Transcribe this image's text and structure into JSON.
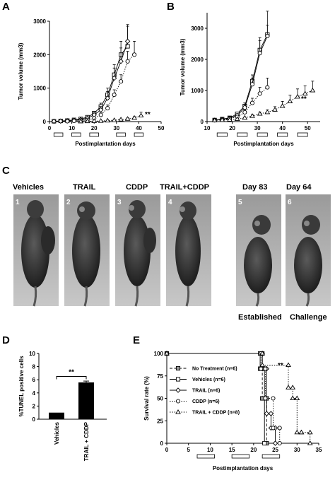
{
  "panel_letters": {
    "a": "A",
    "b": "B",
    "c": "C",
    "d": "D",
    "e": "E"
  },
  "chart_data": [
    {
      "id": "A",
      "type": "line",
      "xlabel": "Postimplantation days",
      "ylabel": "Tumor volume (mm3)",
      "xlim": [
        0,
        50
      ],
      "ylim": [
        0,
        3000
      ],
      "xticks": [
        0,
        10,
        20,
        30,
        40,
        50
      ],
      "yticks": [
        0,
        1000,
        2000,
        3000
      ],
      "annotation": "**",
      "treatment_bars": [
        [
          2,
          6
        ],
        [
          10,
          14
        ],
        [
          18,
          22
        ],
        [
          30,
          34
        ],
        [
          38,
          42
        ]
      ],
      "series": [
        {
          "marker": "square",
          "dash": "solid",
          "x": [
            2,
            5,
            8,
            11,
            14,
            17,
            20,
            23,
            26,
            29,
            32,
            35
          ],
          "y": [
            10,
            20,
            30,
            50,
            80,
            130,
            250,
            450,
            800,
            1400,
            2000,
            2250
          ],
          "err": [
            5,
            10,
            15,
            20,
            25,
            40,
            60,
            100,
            200,
            300,
            400,
            600
          ]
        },
        {
          "marker": "diamond",
          "dash": "solid",
          "x": [
            2,
            5,
            8,
            11,
            14,
            17,
            20,
            23,
            26,
            29,
            32,
            35
          ],
          "y": [
            10,
            15,
            25,
            40,
            60,
            100,
            200,
            350,
            700,
            1300,
            1800,
            2400
          ],
          "err": [
            5,
            10,
            15,
            20,
            25,
            40,
            60,
            100,
            200,
            300,
            400,
            500
          ]
        },
        {
          "marker": "circle",
          "dash": "dotted",
          "x": [
            8,
            11,
            14,
            17,
            20,
            23,
            26,
            29,
            32,
            35,
            38
          ],
          "y": [
            10,
            20,
            30,
            50,
            100,
            200,
            400,
            800,
            1200,
            1800,
            2000
          ],
          "err": [
            5,
            10,
            10,
            20,
            40,
            60,
            100,
            150,
            200,
            300,
            400
          ]
        },
        {
          "marker": "triangle",
          "dash": "dotted",
          "x": [
            14,
            17,
            20,
            23,
            26,
            29,
            32,
            35,
            38,
            41
          ],
          "y": [
            5,
            10,
            15,
            20,
            30,
            40,
            60,
            80,
            110,
            180
          ],
          "err": [
            2,
            5,
            5,
            8,
            10,
            15,
            20,
            30,
            40,
            100
          ]
        }
      ]
    },
    {
      "id": "B",
      "type": "line",
      "xlabel": "Postimplantation days",
      "ylabel": "Tumor volume (mm3)",
      "xlim": [
        10,
        55
      ],
      "ylim": [
        0,
        3500
      ],
      "xticks": [
        10,
        20,
        30,
        40,
        50
      ],
      "yticks": [
        0,
        1000,
        2000,
        3000
      ],
      "annotation": "**",
      "treatment_bars": [
        [
          14,
          18
        ],
        [
          22,
          26
        ],
        [
          30,
          34
        ],
        [
          38,
          42
        ],
        [
          46,
          50
        ]
      ],
      "series": [
        {
          "marker": "square",
          "dash": "solid",
          "x": [
            13,
            16,
            19,
            22,
            25,
            28,
            31,
            34
          ],
          "y": [
            50,
            80,
            120,
            250,
            500,
            1300,
            2300,
            2800
          ],
          "err": [
            20,
            20,
            40,
            50,
            100,
            200,
            400,
            300
          ]
        },
        {
          "marker": "circle",
          "dash": "solid",
          "x": [
            13,
            16,
            19,
            22,
            25,
            28,
            31,
            34
          ],
          "y": [
            50,
            70,
            110,
            200,
            450,
            1200,
            2200,
            2750
          ],
          "err": [
            20,
            20,
            40,
            50,
            100,
            200,
            400,
            800
          ]
        },
        {
          "marker": "circle",
          "dash": "dotted",
          "x": [
            13,
            16,
            19,
            22,
            25,
            28,
            31,
            34
          ],
          "y": [
            40,
            60,
            90,
            150,
            300,
            600,
            900,
            1100
          ],
          "err": [
            20,
            20,
            30,
            40,
            80,
            150,
            200,
            300
          ]
        },
        {
          "marker": "triangle",
          "dash": "dotted",
          "x": [
            13,
            16,
            19,
            22,
            25,
            28,
            31,
            34,
            37,
            40,
            43,
            46,
            49,
            52
          ],
          "y": [
            40,
            50,
            60,
            80,
            120,
            180,
            250,
            300,
            380,
            500,
            650,
            800,
            900,
            1000
          ],
          "err": [
            10,
            15,
            20,
            20,
            30,
            40,
            60,
            80,
            100,
            150,
            200,
            250,
            250,
            300
          ]
        }
      ]
    },
    {
      "id": "D",
      "type": "bar",
      "categories": [
        "Vehicles",
        "TRAIL + CDDP"
      ],
      "values": [
        1.0,
        5.6
      ],
      "err": [
        0,
        0.2
      ],
      "ylabel": "%TUNEL positive cells",
      "ylim": [
        0,
        10
      ],
      "yticks": [
        0,
        2,
        4,
        6,
        8,
        10
      ],
      "annotation": "**"
    },
    {
      "id": "E",
      "type": "line",
      "step": true,
      "xlabel": "Postimplantation days",
      "ylabel": "Survival rate (%)",
      "xlim": [
        0,
        35
      ],
      "ylim": [
        0,
        100
      ],
      "xticks": [
        0,
        5,
        10,
        15,
        20,
        25,
        30,
        35
      ],
      "yticks": [
        0,
        25,
        50,
        75,
        100
      ],
      "annotation": "**",
      "treatment_bars": [
        [
          7,
          11
        ],
        [
          15,
          19
        ],
        [
          22,
          26
        ]
      ],
      "series": [
        {
          "name": "No Treatment  (n=6)",
          "marker": "filled-square",
          "dash": "dashed",
          "x": [
            0,
            22,
            22,
            23,
            23
          ],
          "y": [
            100,
            100,
            50,
            50,
            0
          ]
        },
        {
          "name": "Vehicles  (n=6)",
          "marker": "square",
          "dash": "solid",
          "x": [
            0,
            21.5,
            21.5,
            22.5,
            22.5
          ],
          "y": [
            100,
            100,
            83,
            83,
            0
          ]
        },
        {
          "name": "TRAIL  (n=6)",
          "marker": "diamond",
          "dash": "solid",
          "x": [
            0,
            22,
            22,
            23,
            23,
            24,
            24,
            25,
            25
          ],
          "y": [
            100,
            100,
            83,
            83,
            33,
            33,
            17,
            17,
            0
          ]
        },
        {
          "name": "CDDP  (n=6)",
          "marker": "circle",
          "dash": "dotted",
          "x": [
            0,
            21.7,
            21.7,
            22.7,
            22.7,
            24.5,
            24.5,
            26,
            26
          ],
          "y": [
            100,
            100,
            83,
            83,
            50,
            50,
            17,
            17,
            0
          ]
        },
        {
          "name": "TRAIL + CDDP  (n=8)",
          "marker": "triangle",
          "dash": "dotted",
          "x": [
            0,
            22,
            22,
            28,
            28,
            29,
            29,
            30,
            30,
            31,
            31,
            33,
            33
          ],
          "y": [
            100,
            100,
            87,
            87,
            62,
            62,
            50,
            50,
            12,
            12,
            12,
            12,
            0
          ]
        }
      ]
    }
  ],
  "photos": {
    "titles": [
      "Vehicles",
      "TRAIL",
      "CDDP",
      "TRAIL+CDDP",
      "Day 83",
      "Day 64"
    ],
    "numbers": [
      "1",
      "2",
      "3",
      "4",
      "5",
      "6"
    ],
    "captions": [
      "Established",
      "Challenge"
    ]
  }
}
